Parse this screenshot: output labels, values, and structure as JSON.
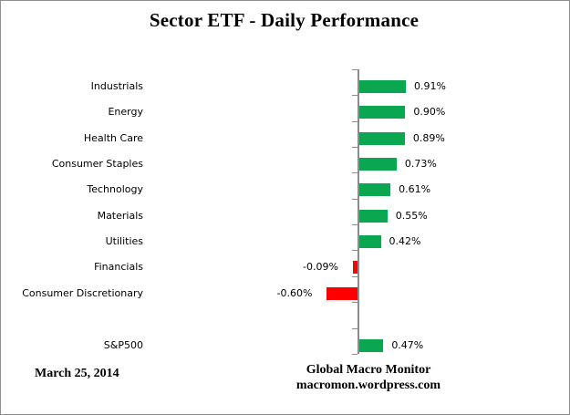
{
  "chart_data": {
    "type": "bar",
    "orientation": "horizontal",
    "title": "Sector ETF - Daily Performance",
    "xlabel": "",
    "ylabel": "",
    "legend": "none",
    "grid": false,
    "value_axis_labels_visible": false,
    "categories": [
      "Industrials",
      "Energy",
      "Health Care",
      "Consumer Staples",
      "Technology",
      "Materials",
      "Utilities",
      "Financials",
      "Consumer Discretionary",
      "",
      "S&P500"
    ],
    "values": [
      0.91,
      0.9,
      0.89,
      0.73,
      0.61,
      0.55,
      0.42,
      -0.09,
      -0.6,
      null,
      0.47
    ],
    "rows": [
      {
        "label": "Industrials",
        "value": 0.91,
        "display": "0.91%"
      },
      {
        "label": "Energy",
        "value": 0.9,
        "display": "0.90%"
      },
      {
        "label": "Health Care",
        "value": 0.89,
        "display": "0.89%"
      },
      {
        "label": "Consumer Staples",
        "value": 0.73,
        "display": "0.73%"
      },
      {
        "label": "Technology",
        "value": 0.61,
        "display": "0.61%"
      },
      {
        "label": "Materials",
        "value": 0.55,
        "display": "0.55%"
      },
      {
        "label": "Utilities",
        "value": 0.42,
        "display": "0.42%"
      },
      {
        "label": "Financials",
        "value": -0.09,
        "display": "-0.09%"
      },
      {
        "label": "Consumer Discretionary",
        "value": -0.6,
        "display": "-0.60%"
      },
      {
        "label": "",
        "value": null,
        "display": ""
      },
      {
        "label": "S&P500",
        "value": 0.47,
        "display": "0.47%"
      }
    ],
    "colors": {
      "positive_bar": "#0AA650",
      "negative_bar": "#FF0000",
      "axis": "#8C8C8C",
      "text": "#000000"
    }
  },
  "footer": {
    "date": "March 25, 2014",
    "credit_line1": "Global Macro Monitor",
    "credit_line2": "macromon.wordpress.com"
  }
}
